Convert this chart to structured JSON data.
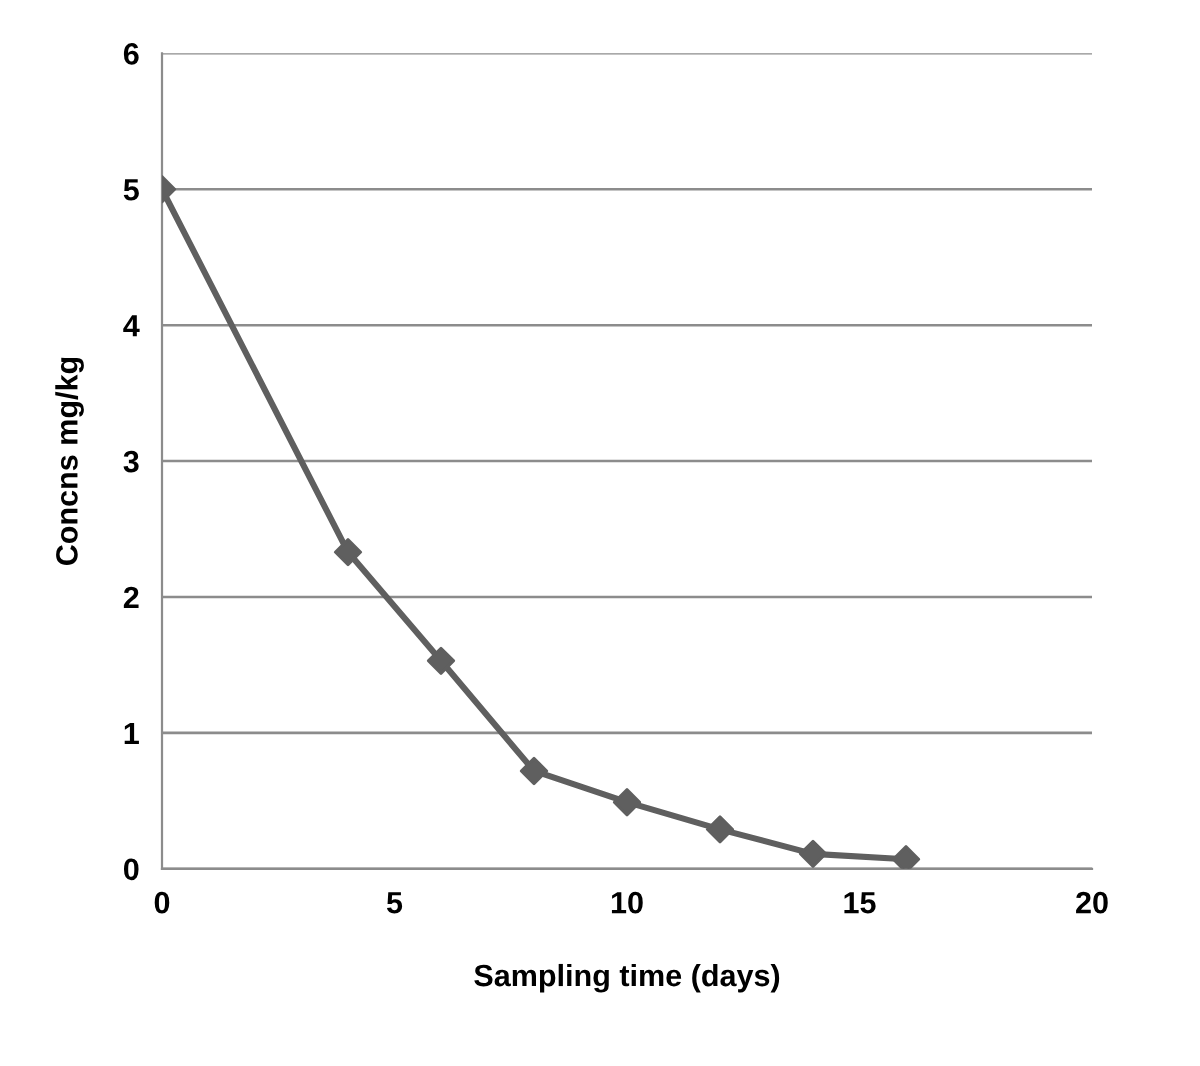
{
  "chart_data": {
    "type": "line",
    "xlabel": "Sampling time (days)",
    "ylabel": "Concns mg/kg",
    "series": [
      {
        "color": "#5f5f5f",
        "x": [
          0,
          4,
          6,
          8,
          10,
          12,
          14,
          16
        ],
        "values": [
          5.0,
          2.33,
          1.53,
          0.72,
          0.49,
          0.29,
          0.11,
          0.07
        ]
      }
    ],
    "xlim": [
      0,
      20
    ],
    "xticks": [
      0,
      5,
      10,
      15,
      20
    ],
    "ylim": [
      0,
      6
    ],
    "yticks": [
      0,
      1,
      2,
      3,
      4,
      5,
      6
    ],
    "grid": "y",
    "marker": "diamond",
    "line_style": "solid"
  }
}
